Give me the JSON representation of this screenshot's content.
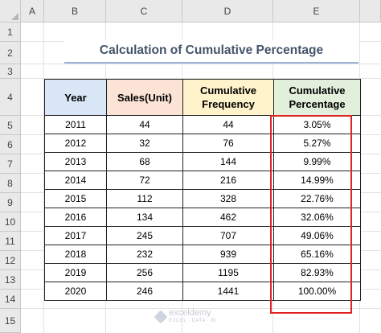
{
  "columns": [
    "A",
    "B",
    "C",
    "D",
    "E"
  ],
  "rows": [
    "1",
    "2",
    "3",
    "4",
    "5",
    "6",
    "7",
    "8",
    "9",
    "10",
    "11",
    "12",
    "13",
    "14",
    "15"
  ],
  "title": "Calculation of Cumulative Percentage",
  "headers": {
    "year": "Year",
    "sales": "Sales(Unit)",
    "freq_line1": "Cumulative",
    "freq_line2": "Frequency",
    "pct_line1": "Cumulative",
    "pct_line2": "Percentage"
  },
  "table": [
    {
      "year": "2011",
      "sales": "44",
      "freq": "44",
      "pct": "3.05%"
    },
    {
      "year": "2012",
      "sales": "32",
      "freq": "76",
      "pct": "5.27%"
    },
    {
      "year": "2013",
      "sales": "68",
      "freq": "144",
      "pct": "9.99%"
    },
    {
      "year": "2014",
      "sales": "72",
      "freq": "216",
      "pct": "14.99%"
    },
    {
      "year": "2015",
      "sales": "112",
      "freq": "328",
      "pct": "22.76%"
    },
    {
      "year": "2016",
      "sales": "134",
      "freq": "462",
      "pct": "32.06%"
    },
    {
      "year": "2017",
      "sales": "245",
      "freq": "707",
      "pct": "49.06%"
    },
    {
      "year": "2018",
      "sales": "232",
      "freq": "939",
      "pct": "65.16%"
    },
    {
      "year": "2019",
      "sales": "256",
      "freq": "1195",
      "pct": "82.93%"
    },
    {
      "year": "2020",
      "sales": "246",
      "freq": "1441",
      "pct": "100.00%"
    }
  ],
  "watermark": {
    "name": "exceldemy",
    "tagline": "EXCEL · DATA · BI"
  },
  "colors": {
    "title_text": "#44546a",
    "title_underline": "#9db1d8",
    "header_year": "#d9e7f7",
    "header_sales": "#fbe3d6",
    "header_freq": "#fff3cc",
    "header_pct": "#e2efda",
    "highlight_border": "#e02424"
  }
}
